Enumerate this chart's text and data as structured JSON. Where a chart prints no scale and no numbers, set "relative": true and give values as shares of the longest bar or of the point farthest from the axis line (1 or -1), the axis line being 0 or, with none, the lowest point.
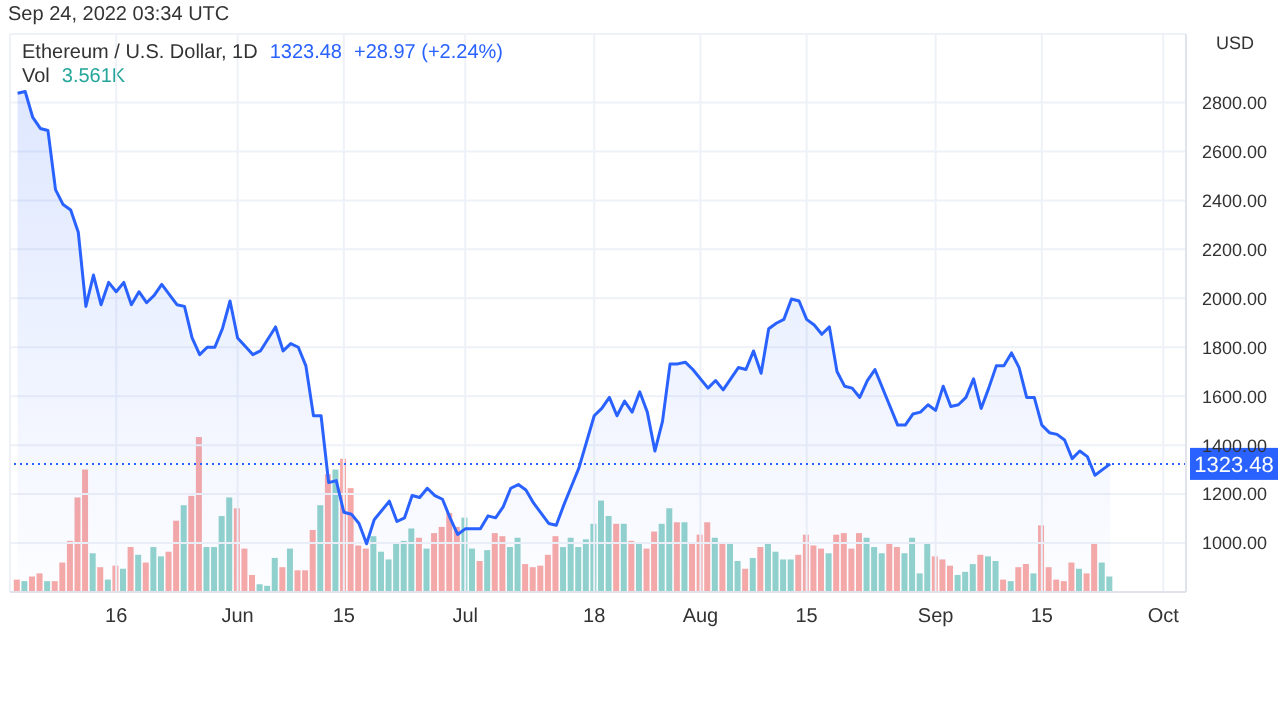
{
  "chart_data": [
    {
      "type": "bar",
      "relative": true,
      "annotations": [
        "Vol",
        "3.561K"
      ],
      "xlim": [
        "2022-05-02",
        "2022-10-04"
      ],
      "x": [
        "2022-05-03",
        "2022-05-04",
        "2022-05-05",
        "2022-05-06",
        "2022-05-07",
        "2022-05-08",
        "2022-05-09",
        "2022-05-10",
        "2022-05-11",
        "2022-05-12",
        "2022-05-13",
        "2022-05-14",
        "2022-05-15",
        "2022-05-16",
        "2022-05-17",
        "2022-05-18",
        "2022-05-19",
        "2022-05-20",
        "2022-05-21",
        "2022-05-22",
        "2022-05-23",
        "2022-05-24",
        "2022-05-25",
        "2022-05-26",
        "2022-05-27",
        "2022-05-28",
        "2022-05-29",
        "2022-05-30",
        "2022-05-31",
        "2022-06-01",
        "2022-06-02",
        "2022-06-03",
        "2022-06-04",
        "2022-06-05",
        "2022-06-06",
        "2022-06-07",
        "2022-06-08",
        "2022-06-09",
        "2022-06-10",
        "2022-06-11",
        "2022-06-12",
        "2022-06-13",
        "2022-06-14",
        "2022-06-15",
        "2022-06-16",
        "2022-06-17",
        "2022-06-18",
        "2022-06-19",
        "2022-06-20",
        "2022-06-21",
        "2022-06-22",
        "2022-06-23",
        "2022-06-24",
        "2022-06-25",
        "2022-06-26",
        "2022-06-27",
        "2022-06-28",
        "2022-06-29",
        "2022-06-30",
        "2022-07-01",
        "2022-07-02",
        "2022-07-03",
        "2022-07-04",
        "2022-07-05",
        "2022-07-06",
        "2022-07-07",
        "2022-07-08",
        "2022-07-09",
        "2022-07-10",
        "2022-07-11",
        "2022-07-12",
        "2022-07-13",
        "2022-07-14",
        "2022-07-15",
        "2022-07-16",
        "2022-07-17",
        "2022-07-18",
        "2022-07-19",
        "2022-07-20",
        "2022-07-21",
        "2022-07-22",
        "2022-07-23",
        "2022-07-24",
        "2022-07-25",
        "2022-07-26",
        "2022-07-27",
        "2022-07-28",
        "2022-07-29",
        "2022-07-30",
        "2022-07-31",
        "2022-08-01",
        "2022-08-02",
        "2022-08-03",
        "2022-08-04",
        "2022-08-05",
        "2022-08-06",
        "2022-08-07",
        "2022-08-08",
        "2022-08-09",
        "2022-08-10",
        "2022-08-11",
        "2022-08-12",
        "2022-08-13",
        "2022-08-14",
        "2022-08-15",
        "2022-08-16",
        "2022-08-17",
        "2022-08-18",
        "2022-08-19",
        "2022-08-20",
        "2022-08-21",
        "2022-08-22",
        "2022-08-23",
        "2022-08-24",
        "2022-08-25",
        "2022-08-26",
        "2022-08-27",
        "2022-08-28",
        "2022-08-29",
        "2022-08-30",
        "2022-08-31",
        "2022-09-01",
        "2022-09-02",
        "2022-09-03",
        "2022-09-04",
        "2022-09-05",
        "2022-09-06",
        "2022-09-07",
        "2022-09-08",
        "2022-09-09",
        "2022-09-10",
        "2022-09-11",
        "2022-09-12",
        "2022-09-13",
        "2022-09-14",
        "2022-09-15",
        "2022-09-16",
        "2022-09-17",
        "2022-09-18",
        "2022-09-19",
        "2022-09-20",
        "2022-09-21",
        "2022-09-22",
        "2022-09-23",
        "2022-09-24"
      ],
      "values": [
        0.08,
        0.07,
        0.1,
        0.12,
        0.07,
        0.07,
        0.19,
        0.33,
        0.61,
        0.79,
        0.25,
        0.16,
        0.08,
        0.17,
        0.15,
        0.29,
        0.24,
        0.19,
        0.29,
        0.23,
        0.26,
        0.46,
        0.56,
        0.62,
        1,
        0.29,
        0.29,
        0.49,
        0.61,
        0.54,
        0.28,
        0.11,
        0.05,
        0.04,
        0.22,
        0.16,
        0.28,
        0.14,
        0.14,
        0.4,
        0.56,
        0.76,
        0.79,
        0.86,
        0.67,
        0.3,
        0.28,
        0.36,
        0.26,
        0.21,
        0.32,
        0.33,
        0.41,
        0.35,
        0.28,
        0.38,
        0.42,
        0.51,
        0.42,
        0.48,
        0.28,
        0.2,
        0.27,
        0.38,
        0.36,
        0.29,
        0.35,
        0.18,
        0.16,
        0.17,
        0.24,
        0.36,
        0.29,
        0.35,
        0.29,
        0.34,
        0.44,
        0.59,
        0.49,
        0.44,
        0.44,
        0.33,
        0.31,
        0.28,
        0.39,
        0.44,
        0.54,
        0.45,
        0.45,
        0.31,
        0.37,
        0.45,
        0.35,
        0.31,
        0.31,
        0.2,
        0.15,
        0.22,
        0.29,
        0.32,
        0.26,
        0.21,
        0.21,
        0.24,
        0.37,
        0.3,
        0.28,
        0.25,
        0.37,
        0.38,
        0.28,
        0.38,
        0.35,
        0.29,
        0.25,
        0.32,
        0.29,
        0.25,
        0.35,
        0.12,
        0.32,
        0.23,
        0.21,
        0.17,
        0.11,
        0.13,
        0.18,
        0.24,
        0.23,
        0.2,
        0.08,
        0.07,
        0.16,
        0.18,
        0.12,
        0.43,
        0.16,
        0.08,
        0.07,
        0.19,
        0.15,
        0.12,
        0.31,
        0.19,
        0.1
      ],
      "colors": [
        "#f7a9a7",
        "#92d2cc",
        "#f7a9a7",
        "#f7a9a7",
        "#92d2cc",
        "#f7a9a7",
        "#f7a9a7",
        "#f7a9a7",
        "#f7a9a7",
        "#f7a9a7",
        "#92d2cc",
        "#f7a9a7",
        "#92d2cc",
        "#f7a9a7",
        "#92d2cc",
        "#f7a9a7",
        "#92d2cc",
        "#f7a9a7",
        "#92d2cc",
        "#92d2cc",
        "#f7a9a7",
        "#f7a9a7",
        "#92d2cc",
        "#f7a9a7",
        "#f7a9a7",
        "#92d2cc",
        "#92d2cc",
        "#92d2cc",
        "#92d2cc",
        "#f7a9a7",
        "#f7a9a7",
        "#f7a9a7",
        "#92d2cc",
        "#92d2cc",
        "#92d2cc",
        "#f7a9a7",
        "#92d2cc",
        "#f7a9a7",
        "#f7a9a7",
        "#f7a9a7",
        "#92d2cc",
        "#f7a9a7",
        "#92d2cc",
        "#f7a9a7",
        "#f7a9a7",
        "#f7a9a7",
        "#f7a9a7",
        "#92d2cc",
        "#92d2cc",
        "#92d2cc",
        "#92d2cc",
        "#92d2cc",
        "#92d2cc",
        "#f7a9a7",
        "#92d2cc",
        "#f7a9a7",
        "#f7a9a7",
        "#f7a9a7",
        "#f7a9a7",
        "#92d2cc",
        "#92d2cc",
        "#f7a9a7",
        "#92d2cc",
        "#f7a9a7",
        "#f7a9a7",
        "#92d2cc",
        "#92d2cc",
        "#f7a9a7",
        "#f7a9a7",
        "#f7a9a7",
        "#f7a9a7",
        "#f7a9a7",
        "#92d2cc",
        "#92d2cc",
        "#92d2cc",
        "#92d2cc",
        "#92d2cc",
        "#92d2cc",
        "#92d2cc",
        "#f7a9a7",
        "#92d2cc",
        "#f7a9a7",
        "#92d2cc",
        "#f7a9a7",
        "#f7a9a7",
        "#92d2cc",
        "#92d2cc",
        "#f7a9a7",
        "#92d2cc",
        "#f7a9a7",
        "#f7a9a7",
        "#f7a9a7",
        "#92d2cc",
        "#f7a9a7",
        "#92d2cc",
        "#92d2cc",
        "#f7a9a7",
        "#92d2cc",
        "#f7a9a7",
        "#92d2cc",
        "#92d2cc",
        "#92d2cc",
        "#92d2cc",
        "#f7a9a7",
        "#f7a9a7",
        "#f7a9a7",
        "#f7a9a7",
        "#92d2cc",
        "#f7a9a7",
        "#f7a9a7",
        "#f7a9a7",
        "#f7a9a7",
        "#92d2cc",
        "#92d2cc",
        "#92d2cc",
        "#f7a9a7",
        "#f7a9a7",
        "#92d2cc",
        "#92d2cc",
        "#92d2cc",
        "#92d2cc",
        "#f7a9a7",
        "#f7a9a7",
        "#f7a9a7",
        "#92d2cc",
        "#92d2cc",
        "#92d2cc",
        "#f7a9a7",
        "#92d2cc",
        "#92d2cc",
        "#f7a9a7",
        "#92d2cc",
        "#f7a9a7",
        "#f7a9a7",
        "#92d2cc",
        "#f7a9a7",
        "#f7a9a7",
        "#f7a9a7",
        "#f7a9a7",
        "#f7a9a7",
        "#92d2cc",
        "#f7a9a7",
        "#f7a9a7",
        "#92d2cc",
        "#92d2cc"
      ]
    },
    {
      "type": "area",
      "title": "Ethereum / U.S. Dollar, 1D",
      "subtitle": "Sep 24, 2022 03:34 UTC",
      "ylabel": "USD",
      "annotations": [
        "1323.48",
        "+28.97 (+2.24%)"
      ],
      "series": [
        {
          "color": "#2962ff",
          "x": [
            "2022-05-03",
            "2022-05-04",
            "2022-05-05",
            "2022-05-06",
            "2022-05-07",
            "2022-05-08",
            "2022-05-09",
            "2022-05-10",
            "2022-05-11",
            "2022-05-12",
            "2022-05-13",
            "2022-05-14",
            "2022-05-15",
            "2022-05-16",
            "2022-05-17",
            "2022-05-18",
            "2022-05-19",
            "2022-05-20",
            "2022-05-21",
            "2022-05-22",
            "2022-05-24",
            "2022-05-25",
            "2022-05-26",
            "2022-05-27",
            "2022-05-28",
            "2022-05-29",
            "2022-05-30",
            "2022-05-31",
            "2022-06-01",
            "2022-06-03",
            "2022-06-04",
            "2022-06-06",
            "2022-06-07",
            "2022-06-08",
            "2022-06-09",
            "2022-06-10",
            "2022-06-11",
            "2022-06-12",
            "2022-06-13",
            "2022-06-14",
            "2022-06-15",
            "2022-06-16",
            "2022-06-17",
            "2022-06-18",
            "2022-06-19",
            "2022-06-21",
            "2022-06-22",
            "2022-06-23",
            "2022-06-24",
            "2022-06-25",
            "2022-06-26",
            "2022-06-27",
            "2022-06-28",
            "2022-06-29",
            "2022-06-30",
            "2022-07-01",
            "2022-07-03",
            "2022-07-04",
            "2022-07-05",
            "2022-07-06",
            "2022-07-07",
            "2022-07-08",
            "2022-07-09",
            "2022-07-10",
            "2022-07-12",
            "2022-07-13",
            "2022-07-14",
            "2022-07-15",
            "2022-07-16",
            "2022-07-18",
            "2022-07-19",
            "2022-07-20",
            "2022-07-21",
            "2022-07-22",
            "2022-07-23",
            "2022-07-24",
            "2022-07-25",
            "2022-07-26",
            "2022-07-27",
            "2022-07-28",
            "2022-07-29",
            "2022-07-30",
            "2022-07-31",
            "2022-08-02",
            "2022-08-03",
            "2022-08-04",
            "2022-08-06",
            "2022-08-07",
            "2022-08-08",
            "2022-08-09",
            "2022-08-10",
            "2022-08-11",
            "2022-08-12",
            "2022-08-13",
            "2022-08-14",
            "2022-08-15",
            "2022-08-16",
            "2022-08-17",
            "2022-08-18",
            "2022-08-19",
            "2022-08-20",
            "2022-08-21",
            "2022-08-22",
            "2022-08-23",
            "2022-08-24",
            "2022-08-27",
            "2022-08-28",
            "2022-08-29",
            "2022-08-30",
            "2022-08-31",
            "2022-09-01",
            "2022-09-02",
            "2022-09-03",
            "2022-09-04",
            "2022-09-05",
            "2022-09-06",
            "2022-09-07",
            "2022-09-08",
            "2022-09-09",
            "2022-09-10",
            "2022-09-11",
            "2022-09-12",
            "2022-09-13",
            "2022-09-14",
            "2022-09-15",
            "2022-09-16",
            "2022-09-17",
            "2022-09-18",
            "2022-09-19",
            "2022-09-20",
            "2022-09-21",
            "2022-09-22",
            "2022-09-23",
            "2022-09-24"
          ],
          "values": [
            2838,
            2845,
            2739,
            2694,
            2686,
            2444,
            2383,
            2361,
            2270,
            1967,
            2095,
            1974,
            2065,
            2027,
            2065,
            1974,
            2027,
            1982,
            2012,
            2057,
            1974,
            1967,
            1838,
            1770,
            1800,
            1800,
            1876,
            1989,
            1838,
            1770,
            1785,
            1883,
            1785,
            1815,
            1800,
            1724,
            1520,
            1520,
            1247,
            1255,
            1126,
            1118,
            1080,
            997,
            1095,
            1171,
            1088,
            1103,
            1194,
            1186,
            1224,
            1194,
            1179,
            1103,
            1035,
            1058,
            1058,
            1111,
            1103,
            1148,
            1224,
            1239,
            1217,
            1164,
            1080,
            1073,
            1156,
            1232,
            1308,
            1520,
            1550,
            1595,
            1520,
            1580,
            1535,
            1618,
            1535,
            1376,
            1497,
            1732,
            1732,
            1739,
            1709,
            1633,
            1664,
            1626,
            1717,
            1709,
            1785,
            1694,
            1876,
            1898,
            1914,
            1997,
            1989,
            1914,
            1891,
            1853,
            1883,
            1701,
            1641,
            1633,
            1595,
            1664,
            1709,
            1482,
            1482,
            1527,
            1535,
            1565,
            1542,
            1641,
            1558,
            1565,
            1595,
            1671,
            1550,
            1633,
            1724,
            1724,
            1777,
            1717,
            1595,
            1595,
            1482,
            1451,
            1444,
            1421,
            1345,
            1376,
            1353,
            1277,
            1300,
            1323.48
          ]
        }
      ],
      "xlim": [
        "2022-05-02",
        "2022-10-04"
      ],
      "xticks": [
        {
          "value": "2022-05-16",
          "label": "16"
        },
        {
          "value": "2022-06-01",
          "label": "Jun"
        },
        {
          "value": "2022-06-15",
          "label": "15"
        },
        {
          "value": "2022-07-01",
          "label": "Jul"
        },
        {
          "value": "2022-07-18",
          "label": "18"
        },
        {
          "value": "2022-08-01",
          "label": "Aug"
        },
        {
          "value": "2022-08-15",
          "label": "15"
        },
        {
          "value": "2022-09-01",
          "label": "Sep"
        },
        {
          "value": "2022-09-15",
          "label": "15"
        },
        {
          "value": "2022-10-01",
          "label": "Oct"
        }
      ],
      "ylim": [
        800,
        3080
      ],
      "yticks": [
        {
          "value": 1000,
          "label": "1000.00"
        },
        {
          "value": 1200,
          "label": "1200.00"
        },
        {
          "value": 1400,
          "label": "1400.00"
        },
        {
          "value": 1600,
          "label": "1600.00"
        },
        {
          "value": 1800,
          "label": "1800.00"
        },
        {
          "value": 2000,
          "label": "2000.00"
        },
        {
          "value": 2200,
          "label": "2200.00"
        },
        {
          "value": 2400,
          "label": "2400.00"
        },
        {
          "value": 2600,
          "label": "2600.00"
        },
        {
          "value": 2800,
          "label": "2800.00"
        }
      ],
      "ref_lines": [
        {
          "axis": "y",
          "value": 1323.48,
          "label": "1323.48",
          "color": "#2962ff",
          "line_style": "dotted"
        }
      ],
      "grid": true
    }
  ]
}
